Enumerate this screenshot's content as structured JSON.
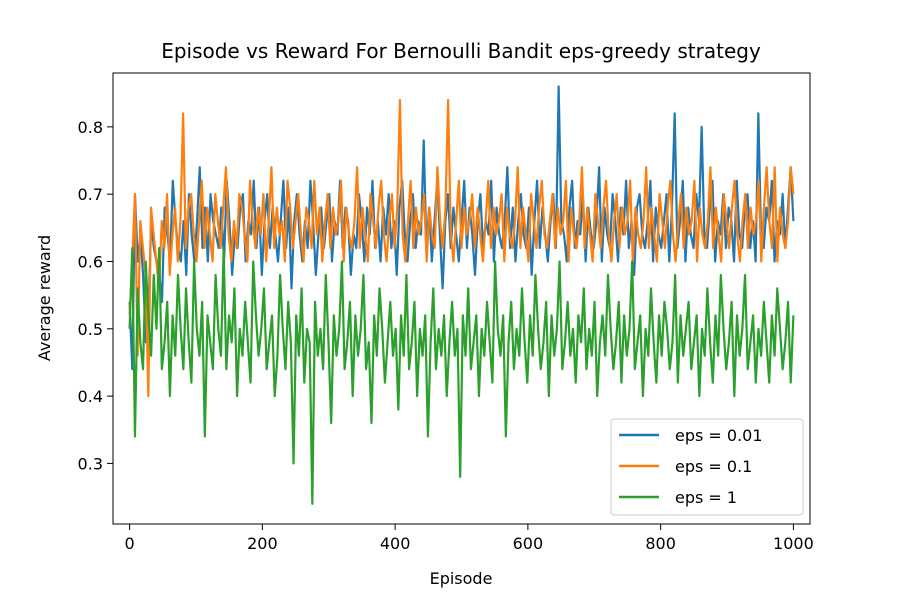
{
  "chart_data": {
    "type": "line",
    "title": "Episode vs Reward For Bernoulli Bandit eps-greedy strategy",
    "xlabel": "Episode",
    "ylabel": "Average reward",
    "xlim": [
      -25,
      1025
    ],
    "ylim": [
      0.21,
      0.88
    ],
    "xticks": [
      0,
      200,
      400,
      600,
      800,
      1000
    ],
    "xtick_labels": [
      "0",
      "200",
      "400",
      "600",
      "800",
      "1000"
    ],
    "yticks": [
      0.3,
      0.4,
      0.5,
      0.6,
      0.7,
      0.8
    ],
    "ytick_labels": [
      "0.3",
      "0.4",
      "0.5",
      "0.6",
      "0.7",
      "0.8"
    ],
    "grid": false,
    "legend_position": "lower-right",
    "x_range": [
      0,
      1000
    ],
    "series": [
      {
        "name": "eps = 0.01",
        "color": "#1f77b4",
        "values": [
          0.54,
          0.44,
          0.7,
          0.6,
          0.64,
          0.58,
          0.48,
          0.52,
          0.66,
          0.62,
          0.6,
          0.58,
          0.54,
          0.68,
          0.64,
          0.6,
          0.72,
          0.66,
          0.62,
          0.6,
          0.66,
          0.58,
          0.7,
          0.64,
          0.6,
          0.66,
          0.74,
          0.62,
          0.68,
          0.6,
          0.7,
          0.66,
          0.64,
          0.62,
          0.68,
          0.6,
          0.72,
          0.66,
          0.58,
          0.64,
          0.62,
          0.68,
          0.7,
          0.6,
          0.66,
          0.64,
          0.72,
          0.62,
          0.68,
          0.58,
          0.66,
          0.7,
          0.62,
          0.68,
          0.64,
          0.6,
          0.66,
          0.72,
          0.62,
          0.68,
          0.56,
          0.66,
          0.7,
          0.64,
          0.6,
          0.66,
          0.62,
          0.72,
          0.66,
          0.58,
          0.64,
          0.68,
          0.62,
          0.66,
          0.7,
          0.6,
          0.66,
          0.64,
          0.72,
          0.62,
          0.68,
          0.66,
          0.58,
          0.64,
          0.62,
          0.7,
          0.66,
          0.6,
          0.68,
          0.64,
          0.72,
          0.62,
          0.66,
          0.6,
          0.68,
          0.64,
          0.7,
          0.62,
          0.66,
          0.58,
          0.68,
          0.72,
          0.64,
          0.6,
          0.66,
          0.7,
          0.62,
          0.66,
          0.64,
          0.78,
          0.62,
          0.68,
          0.6,
          0.66,
          0.72,
          0.64,
          0.56,
          0.66,
          0.7,
          0.62,
          0.68,
          0.64,
          0.6,
          0.66,
          0.72,
          0.62,
          0.68,
          0.64,
          0.58,
          0.66,
          0.7,
          0.62,
          0.66,
          0.64,
          0.72,
          0.6,
          0.68,
          0.64,
          0.62,
          0.66,
          0.74,
          0.62,
          0.68,
          0.6,
          0.66,
          0.7,
          0.64,
          0.62,
          0.68,
          0.58,
          0.66,
          0.72,
          0.62,
          0.68,
          0.64,
          0.6,
          0.66,
          0.7,
          0.62,
          0.86,
          0.66,
          0.64,
          0.6,
          0.68,
          0.72,
          0.62,
          0.66,
          0.64,
          0.7,
          0.6,
          0.68,
          0.64,
          0.62,
          0.66,
          0.74,
          0.6,
          0.68,
          0.64,
          0.62,
          0.7,
          0.66,
          0.6,
          0.68,
          0.64,
          0.72,
          0.62,
          0.66,
          0.58,
          0.68,
          0.7,
          0.64,
          0.62,
          0.66,
          0.72,
          0.6,
          0.68,
          0.64,
          0.62,
          0.66,
          0.7,
          0.6,
          0.68,
          0.82,
          0.62,
          0.66,
          0.72,
          0.6,
          0.68,
          0.64,
          0.62,
          0.7,
          0.66,
          0.8,
          0.64,
          0.62,
          0.68,
          0.72,
          0.6,
          0.66,
          0.64,
          0.7,
          0.62,
          0.68,
          0.66,
          0.6,
          0.72,
          0.64,
          0.62,
          0.68,
          0.7,
          0.62,
          0.66,
          0.6,
          0.82,
          0.64,
          0.62,
          0.68,
          0.66,
          0.72,
          0.6,
          0.66,
          0.64,
          0.7,
          0.62,
          0.68,
          0.74,
          0.66
        ]
      },
      {
        "name": "eps = 0.1",
        "color": "#ff7f0e",
        "values": [
          0.52,
          0.6,
          0.7,
          0.46,
          0.66,
          0.62,
          0.58,
          0.4,
          0.68,
          0.64,
          0.6,
          0.56,
          0.66,
          0.62,
          0.7,
          0.58,
          0.64,
          0.68,
          0.6,
          0.66,
          0.82,
          0.62,
          0.68,
          0.7,
          0.64,
          0.6,
          0.66,
          0.72,
          0.62,
          0.68,
          0.64,
          0.6,
          0.7,
          0.66,
          0.62,
          0.68,
          0.74,
          0.64,
          0.6,
          0.66,
          0.62,
          0.7,
          0.68,
          0.64,
          0.6,
          0.72,
          0.66,
          0.62,
          0.68,
          0.64,
          0.7,
          0.6,
          0.66,
          0.74,
          0.62,
          0.68,
          0.64,
          0.66,
          0.6,
          0.72,
          0.68,
          0.62,
          0.66,
          0.7,
          0.64,
          0.6,
          0.68,
          0.66,
          0.62,
          0.72,
          0.64,
          0.68,
          0.6,
          0.66,
          0.7,
          0.62,
          0.68,
          0.64,
          0.66,
          0.72,
          0.6,
          0.68,
          0.64,
          0.62,
          0.66,
          0.74,
          0.62,
          0.68,
          0.64,
          0.6,
          0.7,
          0.66,
          0.62,
          0.68,
          0.72,
          0.64,
          0.6,
          0.66,
          0.7,
          0.62,
          0.68,
          0.84,
          0.64,
          0.6,
          0.66,
          0.72,
          0.62,
          0.68,
          0.64,
          0.66,
          0.7,
          0.6,
          0.68,
          0.64,
          0.62,
          0.74,
          0.66,
          0.62,
          0.68,
          0.84,
          0.64,
          0.6,
          0.66,
          0.72,
          0.62,
          0.68,
          0.64,
          0.66,
          0.7,
          0.62,
          0.68,
          0.64,
          0.6,
          0.66,
          0.72,
          0.62,
          0.68,
          0.64,
          0.66,
          0.7,
          0.6,
          0.68,
          0.64,
          0.62,
          0.66,
          0.74,
          0.62,
          0.68,
          0.64,
          0.6,
          0.7,
          0.66,
          0.62,
          0.68,
          0.72,
          0.64,
          0.62,
          0.66,
          0.7,
          0.62,
          0.68,
          0.64,
          0.66,
          0.72,
          0.6,
          0.68,
          0.64,
          0.62,
          0.66,
          0.74,
          0.62,
          0.68,
          0.64,
          0.6,
          0.7,
          0.66,
          0.62,
          0.68,
          0.72,
          0.64,
          0.6,
          0.66,
          0.7,
          0.62,
          0.68,
          0.64,
          0.66,
          0.72,
          0.6,
          0.68,
          0.64,
          0.62,
          0.66,
          0.74,
          0.62,
          0.68,
          0.64,
          0.6,
          0.7,
          0.66,
          0.62,
          0.68,
          0.72,
          0.64,
          0.6,
          0.66,
          0.7,
          0.62,
          0.68,
          0.64,
          0.66,
          0.72,
          0.6,
          0.68,
          0.64,
          0.62,
          0.66,
          0.74,
          0.62,
          0.68,
          0.64,
          0.6,
          0.7,
          0.66,
          0.62,
          0.68,
          0.72,
          0.64,
          0.6,
          0.66,
          0.7,
          0.62,
          0.68,
          0.64,
          0.66,
          0.72,
          0.6,
          0.68,
          0.74,
          0.66,
          0.62,
          0.74,
          0.6,
          0.68,
          0.64,
          0.62,
          0.66,
          0.74,
          0.7
        ]
      },
      {
        "name": "eps = 1",
        "color": "#2ca02c",
        "values": [
          0.5,
          0.62,
          0.34,
          0.56,
          0.48,
          0.44,
          0.6,
          0.52,
          0.46,
          0.58,
          0.5,
          0.62,
          0.44,
          0.48,
          0.54,
          0.4,
          0.52,
          0.46,
          0.58,
          0.5,
          0.44,
          0.56,
          0.48,
          0.42,
          0.6,
          0.5,
          0.46,
          0.54,
          0.34,
          0.52,
          0.48,
          0.44,
          0.58,
          0.5,
          0.46,
          0.62,
          0.44,
          0.52,
          0.48,
          0.56,
          0.4,
          0.5,
          0.46,
          0.54,
          0.48,
          0.42,
          0.6,
          0.52,
          0.46,
          0.5,
          0.56,
          0.44,
          0.48,
          0.52,
          0.4,
          0.46,
          0.58,
          0.5,
          0.44,
          0.54,
          0.48,
          0.3,
          0.52,
          0.46,
          0.56,
          0.42,
          0.5,
          0.48,
          0.24,
          0.54,
          0.46,
          0.5,
          0.44,
          0.58,
          0.48,
          0.36,
          0.52,
          0.46,
          0.5,
          0.6,
          0.44,
          0.48,
          0.54,
          0.4,
          0.52,
          0.46,
          0.5,
          0.58,
          0.44,
          0.48,
          0.36,
          0.52,
          0.46,
          0.56,
          0.5,
          0.42,
          0.48,
          0.54,
          0.46,
          0.5,
          0.38,
          0.52,
          0.46,
          0.58,
          0.44,
          0.48,
          0.54,
          0.4,
          0.5,
          0.46,
          0.52,
          0.34,
          0.48,
          0.56,
          0.44,
          0.5,
          0.46,
          0.52,
          0.4,
          0.48,
          0.54,
          0.46,
          0.5,
          0.28,
          0.52,
          0.46,
          0.56,
          0.44,
          0.48,
          0.52,
          0.4,
          0.5,
          0.46,
          0.54,
          0.48,
          0.42,
          0.6,
          0.5,
          0.46,
          0.52,
          0.34,
          0.48,
          0.54,
          0.44,
          0.5,
          0.46,
          0.56,
          0.48,
          0.42,
          0.52,
          0.46,
          0.58,
          0.5,
          0.44,
          0.48,
          0.54,
          0.4,
          0.52,
          0.46,
          0.5,
          0.6,
          0.44,
          0.48,
          0.54,
          0.46,
          0.5,
          0.42,
          0.52,
          0.48,
          0.56,
          0.44,
          0.5,
          0.46,
          0.54,
          0.4,
          0.48,
          0.52,
          0.46,
          0.58,
          0.5,
          0.44,
          0.48,
          0.54,
          0.42,
          0.52,
          0.46,
          0.5,
          0.6,
          0.44,
          0.48,
          0.52,
          0.4,
          0.5,
          0.46,
          0.56,
          0.48,
          0.42,
          0.52,
          0.46,
          0.54,
          0.5,
          0.44,
          0.48,
          0.58,
          0.42,
          0.52,
          0.46,
          0.5,
          0.54,
          0.44,
          0.48,
          0.52,
          0.4,
          0.5,
          0.46,
          0.56,
          0.48,
          0.42,
          0.52,
          0.46,
          0.58,
          0.5,
          0.44,
          0.48,
          0.54,
          0.4,
          0.52,
          0.46,
          0.5,
          0.58,
          0.44,
          0.48,
          0.52,
          0.42,
          0.5,
          0.46,
          0.54,
          0.48,
          0.42,
          0.52,
          0.46,
          0.56,
          0.5,
          0.44,
          0.48,
          0.54,
          0.42,
          0.52
        ]
      }
    ]
  }
}
